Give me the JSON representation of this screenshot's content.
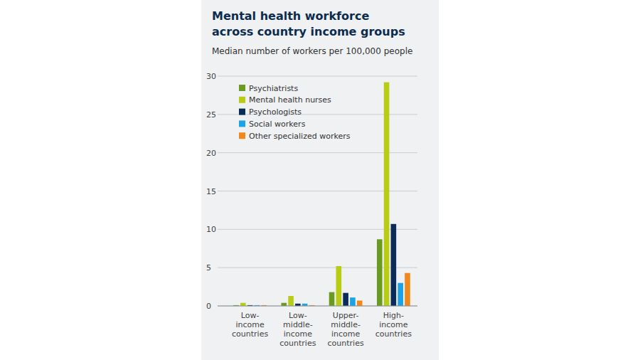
{
  "chart_data": {
    "type": "bar",
    "title": "Mental health workforce across country income groups",
    "subtitle": "Median number of workers per 100,000 people",
    "categories": [
      "Low-income countries",
      "Low-middle-income countries",
      "Upper-middle-income countries",
      "High-income countries"
    ],
    "series": [
      {
        "name": "Psychiatrists",
        "color": "#6a9a1f",
        "values": [
          0.1,
          0.4,
          1.8,
          8.7
        ]
      },
      {
        "name": "Mental health nurses",
        "color": "#b8cc14",
        "values": [
          0.4,
          1.3,
          5.2,
          29.2
        ]
      },
      {
        "name": "Psychologists",
        "color": "#0b2c59",
        "values": [
          0.1,
          0.3,
          1.7,
          10.7
        ]
      },
      {
        "name": "Social workers",
        "color": "#1ca3e6",
        "values": [
          0.1,
          0.3,
          1.1,
          3.0
        ]
      },
      {
        "name": "Other specialized workers",
        "color": "#f0881c",
        "values": [
          0.1,
          0.1,
          0.7,
          4.3
        ]
      }
    ],
    "ylim": [
      0,
      30
    ],
    "yticks": [
      0,
      5,
      10,
      15,
      20,
      25,
      30
    ],
    "grid": true,
    "legend": "top-left"
  }
}
